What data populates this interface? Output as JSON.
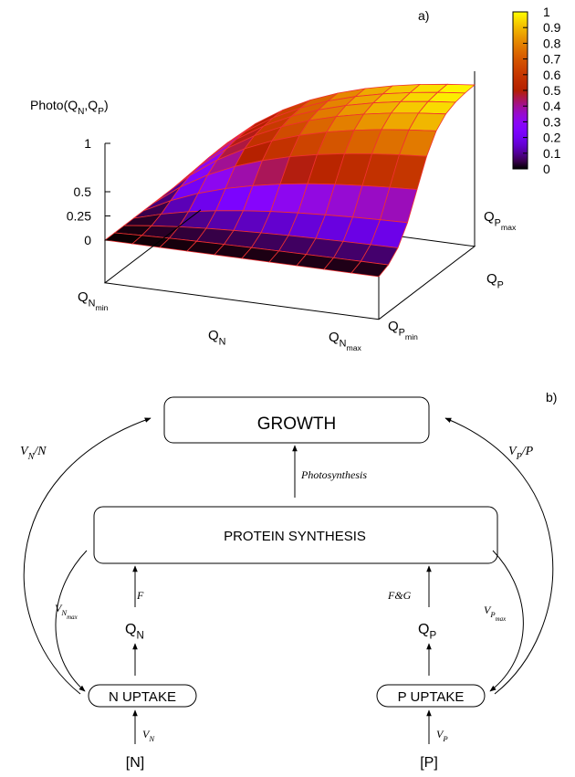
{
  "panel_a": {
    "label": "a)",
    "z_axis_title": {
      "main": "Photo(Q",
      "sub": "N",
      "rest": ",Q",
      "sub2": "P",
      "rest2": ")"
    },
    "z_ticks": [
      1,
      0.5,
      0.25,
      0
    ],
    "colorbar_ticks": [
      1,
      0.9,
      0.8,
      0.7,
      0.6,
      0.5,
      0.4,
      0.3,
      0.2,
      0.1,
      0
    ],
    "x_axis": {
      "title": {
        "main": "Q",
        "sub": "N"
      },
      "min": {
        "main": "Q",
        "sub": "N",
        "subsub": "min"
      },
      "max": {
        "main": "Q",
        "sub": "N",
        "subsub": "max"
      }
    },
    "y_axis": {
      "title": {
        "main": "Q",
        "sub": "P"
      },
      "min": {
        "main": "Q",
        "sub": "P",
        "subsub": "min"
      },
      "max": {
        "main": "Q",
        "sub": "P",
        "subsub": "max"
      }
    }
  },
  "panel_b": {
    "label": "b)",
    "nodes": {
      "growth": "GROWTH",
      "protein_synthesis": "PROTEIN SYNTHESIS",
      "n_uptake": "N UPTAKE",
      "p_uptake": "P UPTAKE",
      "q_n": {
        "main": "Q",
        "sub": "N"
      },
      "q_p": {
        "main": "Q",
        "sub": "P"
      },
      "n": "[N]",
      "p": "[P]"
    },
    "edges": {
      "photosynthesis": "Photosynthesis",
      "f": "F",
      "f_g": "F&G",
      "v_n": {
        "main": "V",
        "sub": "N"
      },
      "v_p": {
        "main": "V",
        "sub": "P"
      },
      "v_n_max": {
        "main": "V",
        "sub": "N",
        "subsub": "max"
      },
      "v_p_max": {
        "main": "V",
        "sub": "P",
        "subsub": "max"
      },
      "v_n_over_n": {
        "main": "V",
        "sub": "N",
        "rest": "/N"
      },
      "v_p_over_p": {
        "main": "V",
        "sub": "P",
        "rest": "/P"
      }
    }
  }
}
